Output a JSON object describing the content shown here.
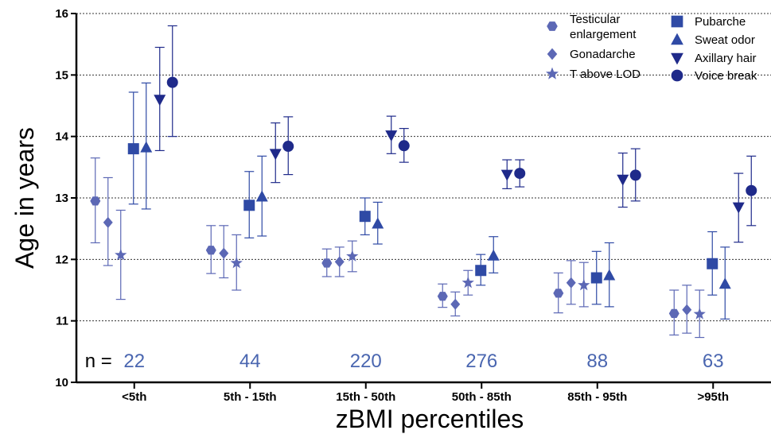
{
  "chart_data": {
    "type": "scatter",
    "xlabel": "zBMI percentiles",
    "ylabel": "Age in years",
    "ylim": [
      10,
      16
    ],
    "yticks": [
      "10",
      "11",
      "12",
      "13",
      "14",
      "15",
      "16"
    ],
    "categories": [
      "<5th",
      "5th - 15th",
      "15th - 50th",
      "50th - 85th",
      "85th - 95th",
      ">95th"
    ],
    "n_prefix": "n =",
    "n_values": [
      "22",
      "44",
      "220",
      "276",
      "88",
      "63"
    ],
    "grid": "horizontal dotted",
    "legend_position": "top-right",
    "legend": [
      "Testicular enlargement",
      "Gonadarche",
      "T above LOD",
      "Pubarche",
      "Sweat odor",
      "Axillary hair",
      "Voice break"
    ],
    "series": [
      {
        "name": "Testicular enlargement",
        "marker": "hexagon",
        "color": "#5c68b5",
        "values": [
          12.95,
          12.15,
          11.94,
          11.4,
          11.45,
          11.12
        ],
        "lower": [
          12.27,
          11.77,
          11.72,
          11.22,
          11.13,
          10.77
        ],
        "upper": [
          13.65,
          12.55,
          12.17,
          11.6,
          11.78,
          11.5
        ]
      },
      {
        "name": "Gonadarche",
        "marker": "diamond",
        "color": "#5c68b5",
        "values": [
          12.6,
          12.1,
          11.96,
          11.27,
          11.62,
          11.18
        ],
        "lower": [
          11.9,
          11.7,
          11.72,
          11.08,
          11.27,
          10.8
        ],
        "upper": [
          13.33,
          12.55,
          12.2,
          11.47,
          11.98,
          11.58
        ]
      },
      {
        "name": "T above LOD",
        "marker": "star",
        "color": "#5c68b5",
        "values": [
          12.07,
          11.94,
          12.05,
          11.62,
          11.58,
          11.11
        ],
        "lower": [
          11.35,
          11.5,
          11.8,
          11.42,
          11.23,
          10.73
        ],
        "upper": [
          12.8,
          12.4,
          12.3,
          11.82,
          11.95,
          11.5
        ]
      },
      {
        "name": "Pubarche",
        "marker": "square",
        "color": "#2f4aa5",
        "values": [
          13.8,
          12.88,
          12.7,
          11.82,
          11.7,
          11.93
        ],
        "lower": [
          12.9,
          12.35,
          12.4,
          11.58,
          11.27,
          11.42
        ],
        "upper": [
          14.72,
          13.43,
          13.0,
          12.08,
          12.13,
          12.45
        ]
      },
      {
        "name": "Sweat odor",
        "marker": "triangle-up",
        "color": "#2f4aa5",
        "values": [
          13.82,
          13.02,
          12.58,
          12.06,
          11.74,
          11.6
        ],
        "lower": [
          12.82,
          12.38,
          12.25,
          11.78,
          11.23,
          11.03
        ],
        "upper": [
          14.87,
          13.68,
          12.93,
          12.37,
          12.27,
          12.2
        ]
      },
      {
        "name": "Axillary hair",
        "marker": "triangle-down",
        "color": "#1f2a8a",
        "values": [
          14.6,
          13.72,
          14.02,
          13.38,
          13.3,
          12.85
        ],
        "lower": [
          13.77,
          13.25,
          13.72,
          13.15,
          12.85,
          12.28
        ],
        "upper": [
          15.45,
          14.22,
          14.33,
          13.62,
          13.73,
          13.4
        ]
      },
      {
        "name": "Voice break",
        "marker": "circle",
        "color": "#1f2a8a",
        "values": [
          14.88,
          13.84,
          13.85,
          13.4,
          13.37,
          13.12
        ],
        "lower": [
          14.0,
          13.38,
          13.58,
          13.18,
          12.95,
          12.55
        ],
        "upper": [
          15.8,
          14.32,
          14.13,
          13.62,
          13.8,
          13.68
        ]
      }
    ]
  },
  "colors": {
    "n_value": "#4a66b0",
    "n_prefix": "#000000",
    "grid": "#333333",
    "axis": "#000000"
  }
}
